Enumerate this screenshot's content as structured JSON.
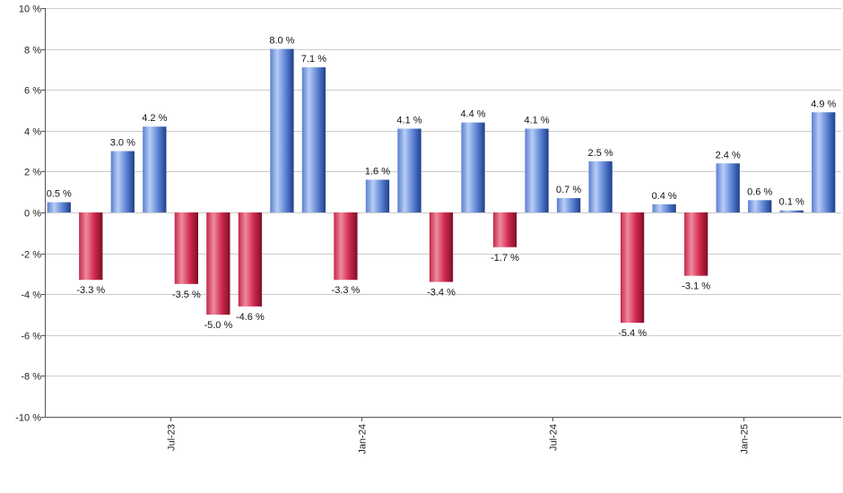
{
  "chart_data": {
    "type": "bar",
    "title": "",
    "xlabel": "",
    "ylabel": "",
    "ylim": [
      -10,
      10
    ],
    "y_ticks": [
      10,
      8,
      6,
      4,
      2,
      0,
      -2,
      -4,
      -6,
      -8,
      -10
    ],
    "y_tick_labels": [
      "10 %",
      "8 %",
      "6 %",
      "4 %",
      "2 %",
      "0 %",
      "-2 %",
      "-4 %",
      "-6 %",
      "-8 %",
      "-10 %"
    ],
    "x_tick_labels": [
      {
        "label": "Jul-23",
        "index": 3.5
      },
      {
        "label": "Jan-24",
        "index": 9.5
      },
      {
        "label": "Jul-24",
        "index": 15.5
      },
      {
        "label": "Jan-25",
        "index": 21.5
      }
    ],
    "values": [
      0.5,
      -3.3,
      3.0,
      4.2,
      -3.5,
      -5.0,
      -4.6,
      8.0,
      7.1,
      -3.3,
      1.6,
      4.1,
      -3.4,
      4.4,
      -1.7,
      4.1,
      0.7,
      2.5,
      -5.4,
      0.4,
      -3.1,
      2.4,
      0.6,
      0.1,
      4.9
    ],
    "labels": [
      "0.5 %",
      "-3.3 %",
      "3.0 %",
      "4.2 %",
      "-3.5 %",
      "-5.0 %",
      "-4.6 %",
      "8.0 %",
      "7.1 %",
      "-3.3 %",
      "1.6 %",
      "4.1 %",
      "-3.4 %",
      "4.4 %",
      "-1.7 %",
      "4.1 %",
      "0.7 %",
      "2.5 %",
      "-5.4 %",
      "0.4 %",
      "-3.1 %",
      "2.4 %",
      "0.6 %",
      "0.1 %",
      "4.9 %"
    ],
    "positive_color": "#5b84d6",
    "negative_color": "#cc2244",
    "grid": true
  }
}
